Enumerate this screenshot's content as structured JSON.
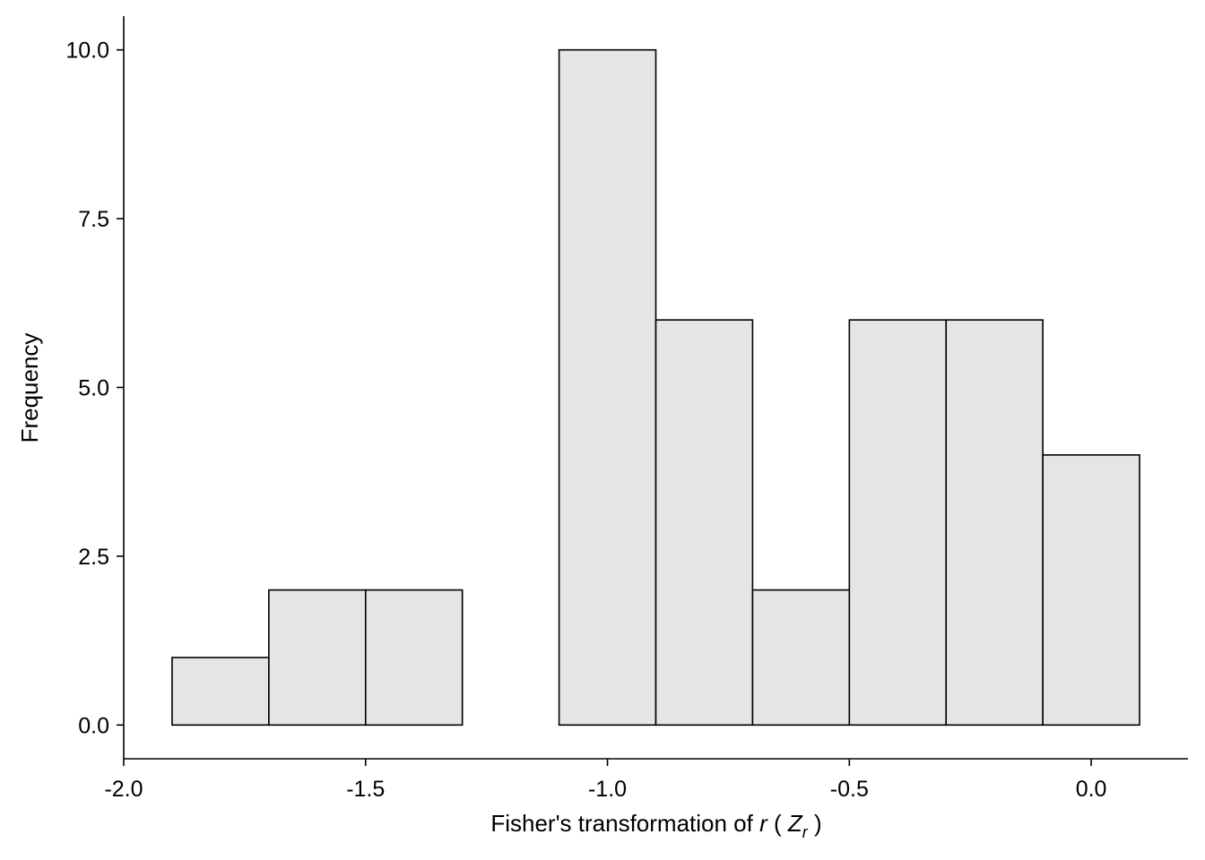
{
  "chart_data": {
    "type": "bar",
    "subtype": "histogram",
    "title": "",
    "xlabel": {
      "prefix": "Fisher's transformation of ",
      "var": "r",
      "open": " ( ",
      "sym": "Z",
      "sub": "r",
      "close": " )"
    },
    "ylabel": "Frequency",
    "xlim": [
      -2.0,
      0.2
    ],
    "ylim": [
      -0.5,
      10.5
    ],
    "x_ticks": [
      -2.0,
      -1.5,
      -1.0,
      -0.5,
      0.0
    ],
    "x_tick_labels": [
      "-2.0",
      "-1.5",
      "-1.0",
      "-0.5",
      "0.0"
    ],
    "y_ticks": [
      0.0,
      2.5,
      5.0,
      7.5,
      10.0
    ],
    "y_tick_labels": [
      "0.0",
      "2.5",
      "5.0",
      "7.5",
      "10.0"
    ],
    "bins": [
      {
        "x0": -1.9,
        "x1": -1.7,
        "count": 1
      },
      {
        "x0": -1.7,
        "x1": -1.5,
        "count": 2
      },
      {
        "x0": -1.5,
        "x1": -1.3,
        "count": 2
      },
      {
        "x0": -1.3,
        "x1": -1.1,
        "count": 0
      },
      {
        "x0": -1.1,
        "x1": -0.9,
        "count": 10
      },
      {
        "x0": -0.9,
        "x1": -0.7,
        "count": 6
      },
      {
        "x0": -0.7,
        "x1": -0.5,
        "count": 2
      },
      {
        "x0": -0.5,
        "x1": -0.3,
        "count": 6
      },
      {
        "x0": -0.3,
        "x1": -0.1,
        "count": 6
      },
      {
        "x0": -0.1,
        "x1": 0.1,
        "count": 4
      }
    ],
    "bar_fill": "#e5e5e5",
    "bar_stroke": "#000000",
    "grid": false,
    "legend": "none"
  }
}
